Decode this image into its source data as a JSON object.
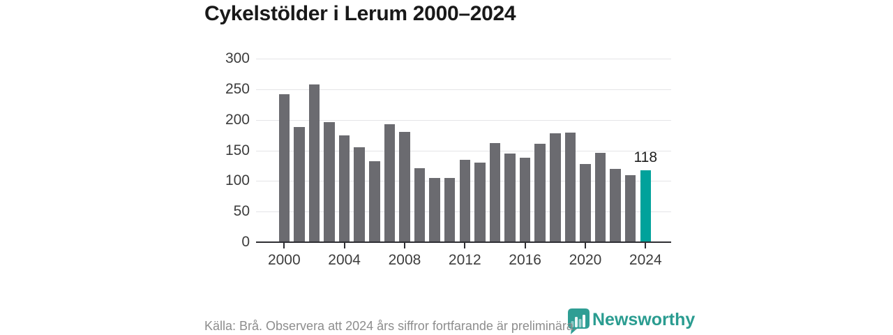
{
  "title": "Cykelstölder i Lerum 2000–2024",
  "chart_data": {
    "type": "bar",
    "x": [
      2000,
      2001,
      2002,
      2003,
      2004,
      2005,
      2006,
      2007,
      2008,
      2009,
      2010,
      2011,
      2012,
      2013,
      2014,
      2015,
      2016,
      2017,
      2018,
      2019,
      2020,
      2021,
      2022,
      2023,
      2024
    ],
    "values": [
      242,
      188,
      258,
      196,
      175,
      155,
      132,
      193,
      180,
      121,
      105,
      105,
      135,
      130,
      162,
      145,
      138,
      161,
      178,
      179,
      128,
      146,
      120,
      109,
      118
    ],
    "title": "Cykelstölder i Lerum 2000–2024",
    "xlabel": "",
    "ylabel": "",
    "ylim": [
      0,
      300
    ],
    "yticks": [
      0,
      50,
      100,
      150,
      200,
      250,
      300
    ],
    "xticks": [
      2000,
      2004,
      2008,
      2012,
      2016,
      2020,
      2024
    ],
    "grid": true,
    "legend": false,
    "bar_color": "#6b6b70",
    "highlight_year": 2024,
    "highlight_color": "#00a29b",
    "highlight_value_label": "118"
  },
  "footer": {
    "source_note": "Källa: Brå. Observera att 2024 års siffror fortfarande är preliminära."
  },
  "branding": {
    "logo_text": "Newsworthy",
    "logo_color": "#2a9c90",
    "logo_icon": "newsworthy-badge-bar-chart-icon"
  }
}
